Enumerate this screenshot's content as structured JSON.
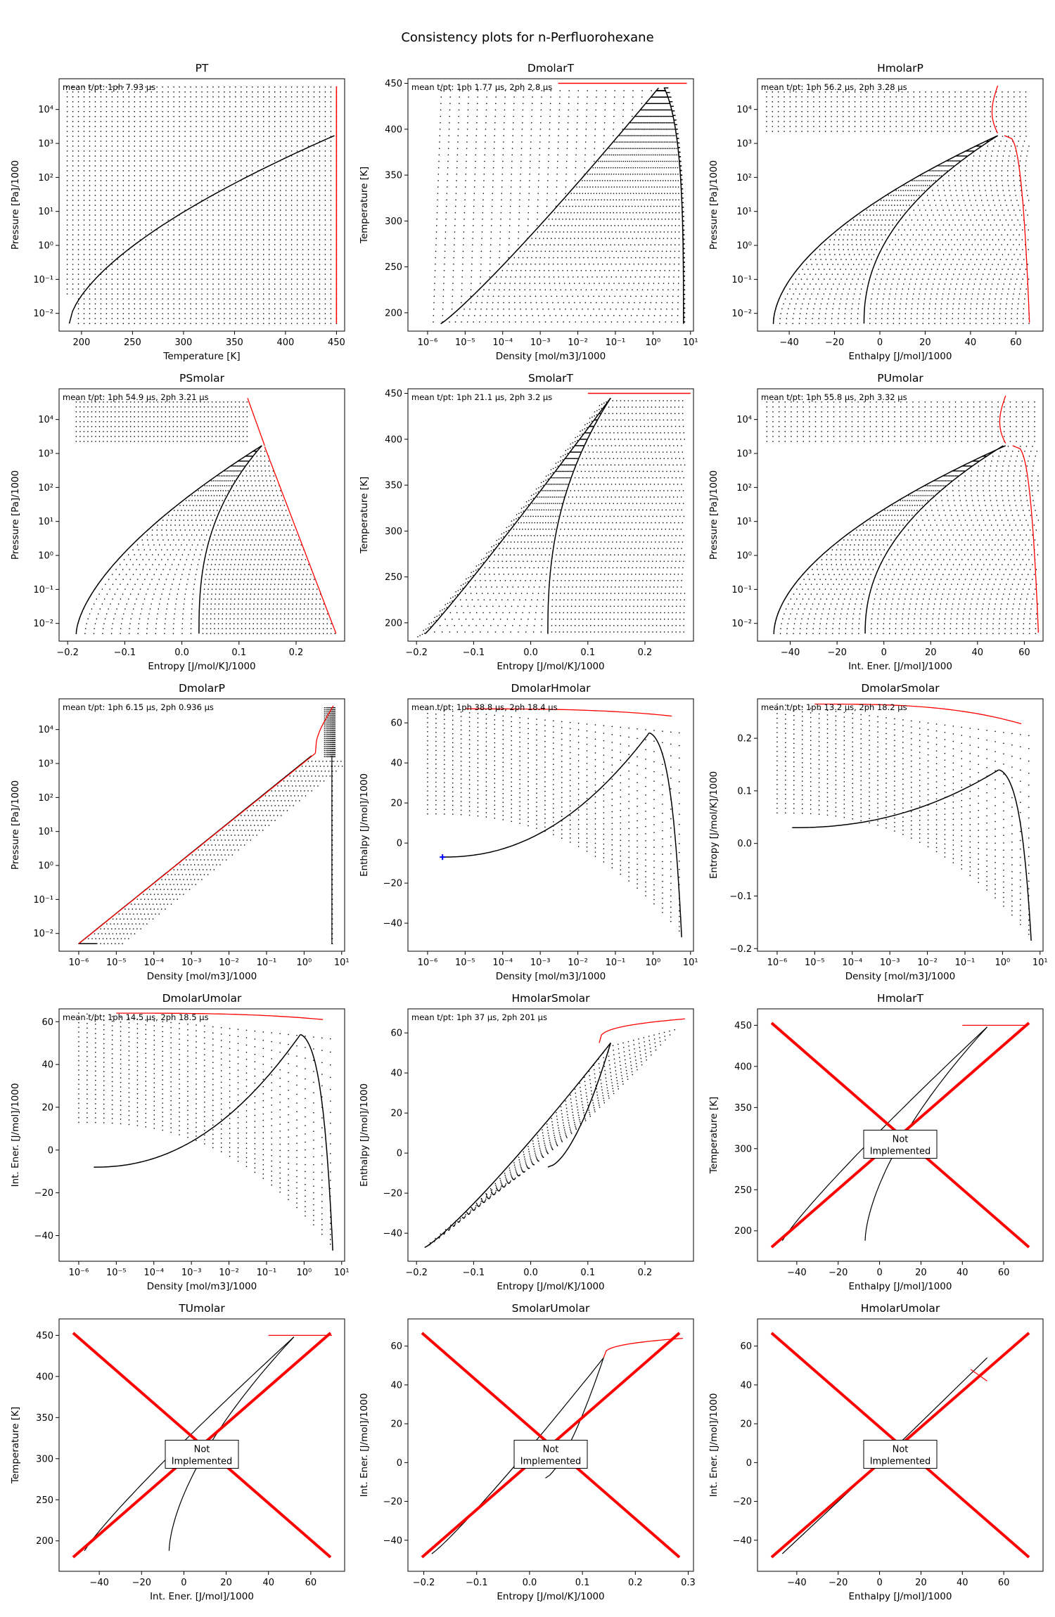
{
  "figure": {
    "title": "Consistency plots for n-Perfluorohexane"
  },
  "colors": {
    "dots": "#000000",
    "phase_envelope": "#000000",
    "critical_line": "#ff0000",
    "marker": "#0000ff"
  },
  "not_implemented_text": [
    "Not",
    "Implemented"
  ],
  "panels": [
    {
      "key": "PT",
      "title": "PT",
      "note": "mean t/pt: 1ph 7.93 µs",
      "xlabel": "Temperature [K]",
      "ylabel": "Pressure [Pa]/1000",
      "xscale": "linear",
      "yscale": "log",
      "xticks": [
        "200",
        "250",
        "300",
        "350",
        "400",
        "450"
      ],
      "yticks": [
        "10⁻²",
        "10⁻¹",
        "10⁰",
        "10¹",
        "10²",
        "10³",
        "10⁴"
      ]
    },
    {
      "key": "DmolarT",
      "title": "DmolarT",
      "note": "mean t/pt: 1ph 1.77 µs, 2ph 2.8 µs",
      "xlabel": "Density [mol/m3]/1000",
      "ylabel": "Temperature [K]",
      "xscale": "log",
      "yscale": "linear",
      "xticks": [
        "10⁻⁶",
        "10⁻⁵",
        "10⁻⁴",
        "10⁻³",
        "10⁻²",
        "10⁻¹",
        "10⁰",
        "10¹"
      ],
      "yticks": [
        "200",
        "250",
        "300",
        "350",
        "400",
        "450"
      ]
    },
    {
      "key": "HmolarP",
      "title": "HmolarP",
      "note": "mean t/pt: 1ph 56.2 µs, 2ph 3.28 µs",
      "xlabel": "Enthalpy [J/mol]/1000",
      "ylabel": "Pressure [Pa]/1000",
      "xscale": "linear",
      "yscale": "log",
      "xticks": [
        "−40",
        "−20",
        "0",
        "20",
        "40",
        "60"
      ],
      "yticks": [
        "10⁻²",
        "10⁻¹",
        "10⁰",
        "10¹",
        "10²",
        "10³",
        "10⁴"
      ]
    },
    {
      "key": "PSmolar",
      "title": "PSmolar",
      "note": "mean t/pt: 1ph 54.9 µs, 2ph 3.21 µs",
      "xlabel": "Entropy [J/mol/K]/1000",
      "ylabel": "Pressure [Pa]/1000",
      "xscale": "linear",
      "yscale": "log",
      "xticks": [
        "−0.2",
        "−0.1",
        "0.0",
        "0.1",
        "0.2"
      ],
      "yticks": [
        "10⁻²",
        "10⁻¹",
        "10⁰",
        "10¹",
        "10²",
        "10³",
        "10⁴"
      ]
    },
    {
      "key": "SmolarT",
      "title": "SmolarT",
      "note": "mean t/pt: 1ph 21.1 µs, 2ph 3.2 µs",
      "xlabel": "Entropy [J/mol/K]/1000",
      "ylabel": "Temperature [K]",
      "xscale": "linear",
      "yscale": "linear",
      "xticks": [
        "−0.2",
        "−0.1",
        "0.0",
        "0.1",
        "0.2"
      ],
      "yticks": [
        "200",
        "250",
        "300",
        "350",
        "400",
        "450"
      ]
    },
    {
      "key": "PUmolar",
      "title": "PUmolar",
      "note": "mean t/pt: 1ph 55.8 µs, 2ph 3.32 µs",
      "xlabel": "Int. Ener. [J/mol]/1000",
      "ylabel": "Pressure [Pa]/1000",
      "xscale": "linear",
      "yscale": "log",
      "xticks": [
        "−40",
        "−20",
        "0",
        "20",
        "40",
        "60"
      ],
      "yticks": [
        "10⁻²",
        "10⁻¹",
        "10⁰",
        "10¹",
        "10²",
        "10³",
        "10⁴"
      ]
    },
    {
      "key": "DmolarP",
      "title": "DmolarP",
      "note": "mean t/pt: 1ph 6.15 µs, 2ph 0.936 µs",
      "xlabel": "Density [mol/m3]/1000",
      "ylabel": "Pressure [Pa]/1000",
      "xscale": "log",
      "yscale": "log",
      "xticks": [
        "10⁻⁶",
        "10⁻⁵",
        "10⁻⁴",
        "10⁻³",
        "10⁻²",
        "10⁻¹",
        "10⁰",
        "10¹"
      ],
      "yticks": [
        "10⁻²",
        "10⁻¹",
        "10⁰",
        "10¹",
        "10²",
        "10³",
        "10⁴"
      ]
    },
    {
      "key": "DmolarHmolar",
      "title": "DmolarHmolar",
      "note": "mean t/pt: 1ph 38.8 µs, 2ph 18.4 µs",
      "xlabel": "Density [mol/m3]/1000",
      "ylabel": "Enthalpy [J/mol]/1000",
      "xscale": "log",
      "yscale": "linear",
      "xticks": [
        "10⁻⁶",
        "10⁻⁵",
        "10⁻⁴",
        "10⁻³",
        "10⁻²",
        "10⁻¹",
        "10⁰",
        "10¹"
      ],
      "yticks": [
        "−40",
        "−20",
        "0",
        "20",
        "40",
        "60"
      ]
    },
    {
      "key": "DmolarSmolar",
      "title": "DmolarSmolar",
      "note": "mean t/pt: 1ph 13.2 µs, 2ph 18.2 µs",
      "xlabel": "Density [mol/m3]/1000",
      "ylabel": "Entropy [J/mol/K]/1000",
      "xscale": "log",
      "yscale": "linear",
      "xticks": [
        "10⁻⁶",
        "10⁻⁵",
        "10⁻⁴",
        "10⁻³",
        "10⁻²",
        "10⁻¹",
        "10⁰",
        "10¹"
      ],
      "yticks": [
        "−0.2",
        "−0.1",
        "0.0",
        "0.1",
        "0.2"
      ]
    },
    {
      "key": "DmolarUmolar",
      "title": "DmolarUmolar",
      "note": "mean t/pt: 1ph 14.5 µs, 2ph 18.5 µs",
      "xlabel": "Density [mol/m3]/1000",
      "ylabel": "Int. Ener. [J/mol]/1000",
      "xscale": "log",
      "yscale": "linear",
      "xticks": [
        "10⁻⁶",
        "10⁻⁵",
        "10⁻⁴",
        "10⁻³",
        "10⁻²",
        "10⁻¹",
        "10⁰",
        "10¹"
      ],
      "yticks": [
        "−40",
        "−20",
        "0",
        "20",
        "40",
        "60"
      ]
    },
    {
      "key": "HmolarSmolar",
      "title": "HmolarSmolar",
      "note": "mean t/pt: 1ph 37 µs, 2ph 201 µs",
      "xlabel": "Entropy [J/mol/K]/1000",
      "ylabel": "Enthalpy [J/mol]/1000",
      "xscale": "linear",
      "yscale": "linear",
      "xticks": [
        "−0.2",
        "−0.1",
        "0.0",
        "0.1",
        "0.2"
      ],
      "yticks": [
        "−40",
        "−20",
        "0",
        "20",
        "40",
        "60"
      ]
    },
    {
      "key": "HmolarT",
      "title": "HmolarT",
      "note": "",
      "xlabel": "Enthalpy [J/mol]/1000",
      "ylabel": "Temperature [K]",
      "xscale": "linear",
      "yscale": "linear",
      "not_implemented": true,
      "xticks": [
        "−40",
        "−20",
        "0",
        "20",
        "40",
        "60"
      ],
      "yticks": [
        "200",
        "250",
        "300",
        "350",
        "400",
        "450"
      ]
    },
    {
      "key": "TUmolar",
      "title": "TUmolar",
      "note": "",
      "xlabel": "Int. Ener. [J/mol]/1000",
      "ylabel": "Temperature [K]",
      "xscale": "linear",
      "yscale": "linear",
      "not_implemented": true,
      "xticks": [
        "−40",
        "−20",
        "0",
        "20",
        "40",
        "60"
      ],
      "yticks": [
        "200",
        "250",
        "300",
        "350",
        "400",
        "450"
      ]
    },
    {
      "key": "SmolarUmolar",
      "title": "SmolarUmolar",
      "note": "",
      "xlabel": "Entropy [J/mol/K]/1000",
      "ylabel": "Int. Ener. [J/mol]/1000",
      "xscale": "linear",
      "yscale": "linear",
      "not_implemented": true,
      "xticks": [
        "−0.2",
        "−0.1",
        "0.0",
        "0.1",
        "0.2",
        "0.3"
      ],
      "yticks": [
        "−40",
        "−20",
        "0",
        "20",
        "40",
        "60"
      ]
    },
    {
      "key": "HmolarUmolar",
      "title": "HmolarUmolar",
      "note": "",
      "xlabel": "Enthalpy [J/mol]/1000",
      "ylabel": "Int. Ener. [J/mol]/1000",
      "xscale": "linear",
      "yscale": "linear",
      "not_implemented": true,
      "xticks": [
        "−40",
        "−20",
        "0",
        "20",
        "40",
        "60"
      ],
      "yticks": [
        "−40",
        "−20",
        "0",
        "20",
        "40",
        "60"
      ]
    }
  ],
  "chart_data": [
    {
      "type": "scatter",
      "title": "PT",
      "xlabel": "Temperature [K]",
      "ylabel": "Pressure [Pa]/1000",
      "xlim": [
        178,
        458
      ],
      "ylim": [
        0.003,
        80000
      ],
      "yscale": "log",
      "series": [
        {
          "values": [
            [
              188,
              0.005
            ],
            [
              200,
              0.02
            ],
            [
              220,
              0.15
            ],
            [
              250,
              1.3
            ],
            [
              280,
              8
            ],
            [
              310,
              35
            ],
            [
              340,
              120
            ],
            [
              370,
              320
            ],
            [
              400,
              700
            ],
            [
              430,
              1250
            ],
            [
              448,
              1700
            ]
          ]
        }
      ]
    },
    {
      "type": "scatter",
      "title": "DmolarT",
      "xlabel": "Density [mol/m3]/1000",
      "ylabel": "Temperature [K]",
      "xlim": [
        3e-07,
        12
      ],
      "ylim": [
        180,
        455
      ],
      "xscale": "log",
      "series": [
        {
          "values": [
            [
              2.2e-06,
              188
            ],
            [
              2e-05,
              210
            ],
            [
              0.0003,
              250
            ],
            [
              0.003,
              290
            ],
            [
              0.03,
              340
            ],
            [
              0.2,
              390
            ],
            [
              1.5,
              445
            ],
            [
              4,
              440
            ],
            [
              5.5,
              300
            ],
            [
              6.5,
              188
            ]
          ]
        }
      ]
    },
    {
      "type": "scatter",
      "title": "HmolarP",
      "xlabel": "Enthalpy [J/mol]/1000",
      "ylabel": "Pressure [Pa]/1000",
      "xlim": [
        -54,
        72
      ],
      "ylim": [
        0.003,
        80000
      ],
      "yscale": "log",
      "series": [
        {
          "values": [
            [
              -47,
              0.005
            ],
            [
              -30,
              1
            ],
            [
              -10,
              50
            ],
            [
              15,
              500
            ],
            [
              52,
              1700
            ],
            [
              -7,
              0.005
            ],
            [
              5,
              1
            ],
            [
              25,
              100
            ],
            [
              52,
              1700
            ]
          ]
        }
      ]
    },
    {
      "type": "scatter",
      "title": "PSmolar",
      "xlabel": "Entropy [J/mol/K]/1000",
      "ylabel": "Pressure [Pa]/1000",
      "xlim": [
        -0.215,
        0.285
      ],
      "ylim": [
        0.003,
        80000
      ],
      "yscale": "log",
      "series": [
        {
          "values": [
            [
              -0.185,
              0.005
            ],
            [
              -0.1,
              1
            ],
            [
              0.0,
              50
            ],
            [
              0.14,
              1700
            ],
            [
              0.03,
              0.005
            ],
            [
              0.05,
              1
            ],
            [
              0.1,
              100
            ],
            [
              0.14,
              1700
            ]
          ]
        }
      ]
    },
    {
      "type": "scatter",
      "title": "SmolarT",
      "xlabel": "Entropy [J/mol/K]/1000",
      "ylabel": "Temperature [K]",
      "xlim": [
        -0.215,
        0.285
      ],
      "ylim": [
        180,
        455
      ],
      "series": [
        {
          "values": [
            [
              -0.185,
              188
            ],
            [
              -0.1,
              240
            ],
            [
              0.0,
              310
            ],
            [
              0.1,
              400
            ],
            [
              0.14,
              445
            ],
            [
              0.03,
              188
            ],
            [
              0.06,
              260
            ],
            [
              0.13,
              400
            ]
          ]
        }
      ]
    },
    {
      "type": "scatter",
      "title": "PUmolar",
      "xlabel": "Int. Ener. [J/mol]/1000",
      "ylabel": "Pressure [Pa]/1000",
      "xlim": [
        -54,
        68
      ],
      "ylim": [
        0.003,
        80000
      ],
      "yscale": "log",
      "series": [
        {
          "values": [
            [
              -47,
              0.005
            ],
            [
              -30,
              1
            ],
            [
              -10,
              50
            ],
            [
              15,
              500
            ],
            [
              52,
              1700
            ],
            [
              -8,
              0.005
            ],
            [
              5,
              1
            ],
            [
              25,
              100
            ],
            [
              52,
              1700
            ]
          ]
        }
      ]
    },
    {
      "type": "scatter",
      "title": "DmolarP",
      "xlabel": "Density [mol/m3]/1000",
      "ylabel": "Pressure [Pa]/1000",
      "xlim": [
        3e-07,
        12
      ],
      "ylim": [
        0.003,
        80000
      ],
      "xscale": "log",
      "yscale": "log",
      "series": [
        {
          "values": [
            [
              1e-06,
              0.005
            ],
            [
              0.0001,
              0.5
            ],
            [
              0.01,
              50
            ],
            [
              1,
              1500
            ],
            [
              3,
              1700
            ],
            [
              5.5,
              0.005
            ]
          ]
        }
      ]
    },
    {
      "type": "scatter",
      "title": "DmolarHmolar",
      "xlabel": "Density [mol/m3]/1000",
      "ylabel": "Enthalpy [J/mol]/1000",
      "xlim": [
        3e-07,
        12
      ],
      "ylim": [
        -54,
        72
      ],
      "xscale": "log",
      "series": [
        {
          "values": [
            [
              2.5e-06,
              -7
            ],
            [
              0.0001,
              0
            ],
            [
              0.01,
              18
            ],
            [
              0.3,
              45
            ],
            [
              0.8,
              55
            ],
            [
              3,
              48
            ],
            [
              6,
              -47
            ]
          ]
        }
      ]
    },
    {
      "type": "scatter",
      "title": "DmolarSmolar",
      "xlabel": "Density [mol/m3]/1000",
      "ylabel": "Entropy [J/mol/K]/1000",
      "xlim": [
        3e-07,
        12
      ],
      "ylim": [
        -0.205,
        0.275
      ],
      "xscale": "log",
      "series": [
        {
          "values": [
            [
              2.5e-06,
              0.03
            ],
            [
              0.001,
              0.04
            ],
            [
              0.05,
              0.07
            ],
            [
              0.8,
              0.14
            ],
            [
              3,
              0.12
            ],
            [
              6,
              -0.185
            ]
          ]
        }
      ]
    },
    {
      "type": "scatter",
      "title": "DmolarUmolar",
      "xlabel": "Density [mol/m3]/1000",
      "ylabel": "Int. Ener. [J/mol]/1000",
      "xlim": [
        3e-07,
        12
      ],
      "ylim": [
        -52,
        66
      ],
      "xscale": "log",
      "series": [
        {
          "values": [
            [
              3e-06,
              -8
            ],
            [
              0.0001,
              -3
            ],
            [
              0.01,
              15
            ],
            [
              0.3,
              45
            ],
            [
              0.8,
              54
            ],
            [
              3,
              48
            ],
            [
              6,
              -47
            ]
          ]
        }
      ]
    },
    {
      "type": "scatter",
      "title": "HmolarSmolar",
      "xlabel": "Entropy [J/mol/K]/1000",
      "ylabel": "Enthalpy [J/mol]/1000",
      "xlim": [
        -0.215,
        0.285
      ],
      "ylim": [
        -54,
        72
      ],
      "series": [
        {
          "values": [
            [
              -0.185,
              -47
            ],
            [
              -0.1,
              -25
            ],
            [
              0.0,
              0
            ],
            [
              0.1,
              40
            ],
            [
              0.14,
              55
            ],
            [
              0.03,
              -7
            ],
            [
              0.1,
              45
            ]
          ]
        }
      ]
    },
    {
      "type": "line",
      "title": "HmolarT",
      "xlabel": "Enthalpy [J/mol]/1000",
      "ylabel": "Temperature [K]",
      "xlim": [
        -59,
        79
      ],
      "ylim": [
        163,
        470
      ],
      "series": [
        {
          "values": [
            [
              -47,
              188
            ],
            [
              0,
              290
            ],
            [
              52,
              448
            ],
            [
              -7,
              188
            ],
            [
              40,
              400
            ],
            [
              52,
              448
            ]
          ]
        }
      ]
    },
    {
      "type": "line",
      "title": "TUmolar",
      "xlabel": "Int. Ener. [J/mol]/1000",
      "ylabel": "Temperature [K]",
      "xlim": [
        -59,
        76
      ],
      "ylim": [
        163,
        470
      ],
      "series": [
        {
          "values": [
            [
              -47,
              188
            ],
            [
              0,
              290
            ],
            [
              52,
              448
            ],
            [
              -8,
              188
            ],
            [
              40,
              400
            ],
            [
              52,
              448
            ]
          ]
        }
      ]
    },
    {
      "type": "line",
      "title": "SmolarUmolar",
      "xlabel": "Entropy [J/mol/K]/1000",
      "ylabel": "Int. Ener. [J/mol]/1000",
      "xlim": [
        -0.23,
        0.31
      ],
      "ylim": [
        -56,
        74
      ],
      "series": [
        {
          "values": [
            [
              -0.185,
              -47
            ],
            [
              0.03,
              -8
            ],
            [
              0.14,
              54
            ],
            [
              0.18,
              64
            ],
            [
              0.29,
              64
            ]
          ]
        }
      ]
    },
    {
      "type": "line",
      "title": "HmolarUmolar",
      "xlabel": "Enthalpy [J/mol]/1000",
      "ylabel": "Int. Ener. [J/mol]/1000",
      "xlim": [
        -59,
        79
      ],
      "ylim": [
        -56,
        74
      ],
      "series": [
        {
          "values": [
            [
              -47,
              -47
            ],
            [
              0,
              0
            ],
            [
              52,
              54
            ]
          ]
        }
      ]
    }
  ]
}
